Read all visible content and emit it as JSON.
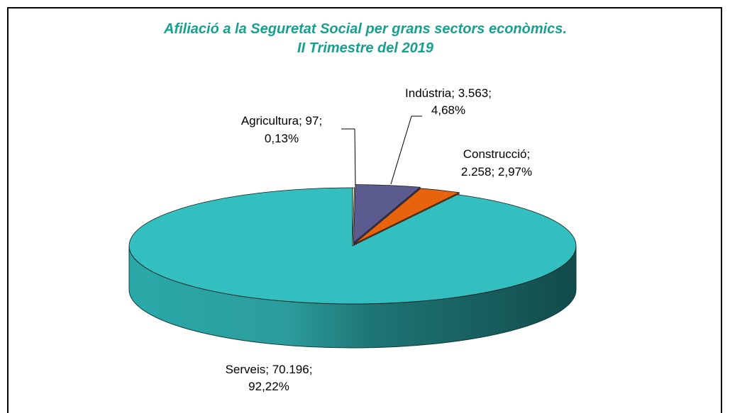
{
  "chart_data": {
    "type": "pie3d",
    "title": "Afiliació a la Seguretat Social per grans sectors econòmics.",
    "subtitle": "II Trimestre del 2019",
    "categories": [
      "Agricultura",
      "Indústria",
      "Construcció",
      "Serveis"
    ],
    "values": [
      97,
      3563,
      2258,
      70196
    ],
    "value_labels": [
      "97",
      "3.563",
      "2.258",
      "70.196"
    ],
    "percentages": [
      0.13,
      4.68,
      2.97,
      92.22
    ],
    "percentage_labels": [
      "0,13%",
      "4,68%",
      "2,97%",
      "92,22%"
    ],
    "label_separator": "; ",
    "colors": [
      "#f2f5b8",
      "#5b5b8f",
      "#e8630e",
      "#33bfbf"
    ]
  }
}
